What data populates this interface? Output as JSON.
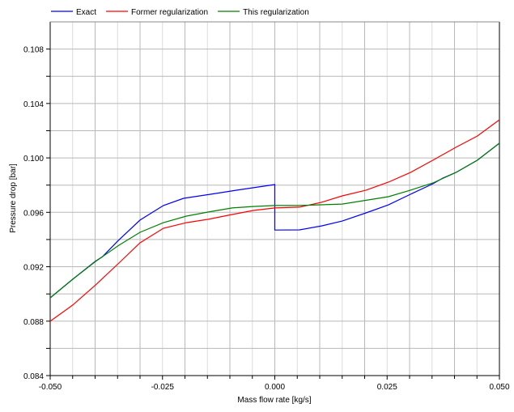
{
  "chart_data": {
    "type": "line",
    "title": "",
    "xlabel": "Mass flow rate [kg/s]",
    "ylabel": "Pressure drop [bar]",
    "xlim": [
      -0.05,
      0.05
    ],
    "ylim": [
      0.084,
      0.11
    ],
    "xticks": [
      "-0.050",
      "-0.025",
      "0.000",
      "0.025",
      "0.050"
    ],
    "yticks": [
      "0.084",
      "0.088",
      "0.092",
      "0.096",
      "0.100",
      "0.104",
      "0.108"
    ],
    "grid": true,
    "legend_position": "top",
    "series": [
      {
        "name": "Exact",
        "color": "#0000ff",
        "x": [
          -0.05,
          -0.045,
          -0.04,
          -0.0383,
          -0.035,
          -0.03,
          -0.0248,
          -0.0203,
          -0.0143,
          -0.0084,
          0.0,
          0.0,
          0.0055,
          0.0104,
          0.015,
          0.0203,
          0.0253,
          0.0302,
          0.0352,
          0.0374,
          0.0403,
          0.0451,
          0.05
        ],
        "y": [
          0.08971,
          0.09108,
          0.09239,
          0.09275,
          0.09388,
          0.09543,
          0.0965,
          0.09703,
          0.09733,
          0.09763,
          0.09804,
          0.0947,
          0.09471,
          0.095,
          0.09536,
          0.09596,
          0.09655,
          0.09733,
          0.0981,
          0.09852,
          0.09893,
          0.09983,
          0.10108
        ]
      },
      {
        "name": "Former regularization",
        "color": "#ff0000",
        "x": [
          -0.05,
          -0.045,
          -0.0399,
          -0.0347,
          -0.03,
          -0.0248,
          -0.0197,
          -0.0149,
          -0.0095,
          -0.0048,
          0.0,
          0.0055,
          0.0104,
          0.015,
          0.0203,
          0.0253,
          0.0302,
          0.0352,
          0.0403,
          0.0451,
          0.05
        ],
        "y": [
          0.08799,
          0.08918,
          0.09066,
          0.09227,
          0.09376,
          0.09483,
          0.09524,
          0.09548,
          0.09584,
          0.09614,
          0.09632,
          0.09638,
          0.09674,
          0.09721,
          0.09763,
          0.09822,
          0.09893,
          0.09983,
          0.10078,
          0.10161,
          0.1028
        ]
      },
      {
        "name": "This regularization",
        "color": "#008000",
        "x": [
          -0.05,
          -0.045,
          -0.0399,
          -0.0347,
          -0.03,
          -0.0248,
          -0.0197,
          -0.0149,
          -0.0095,
          -0.0048,
          0.0,
          0.0055,
          0.015,
          0.0253,
          0.0302,
          0.0352,
          0.0403,
          0.0451,
          0.05
        ],
        "y": [
          0.08971,
          0.09108,
          0.09239,
          0.09358,
          0.09453,
          0.09524,
          0.09572,
          0.09602,
          0.09632,
          0.09643,
          0.0965,
          0.0965,
          0.09661,
          0.09715,
          0.09763,
          0.09816,
          0.09893,
          0.09983,
          0.10108
        ]
      }
    ]
  }
}
